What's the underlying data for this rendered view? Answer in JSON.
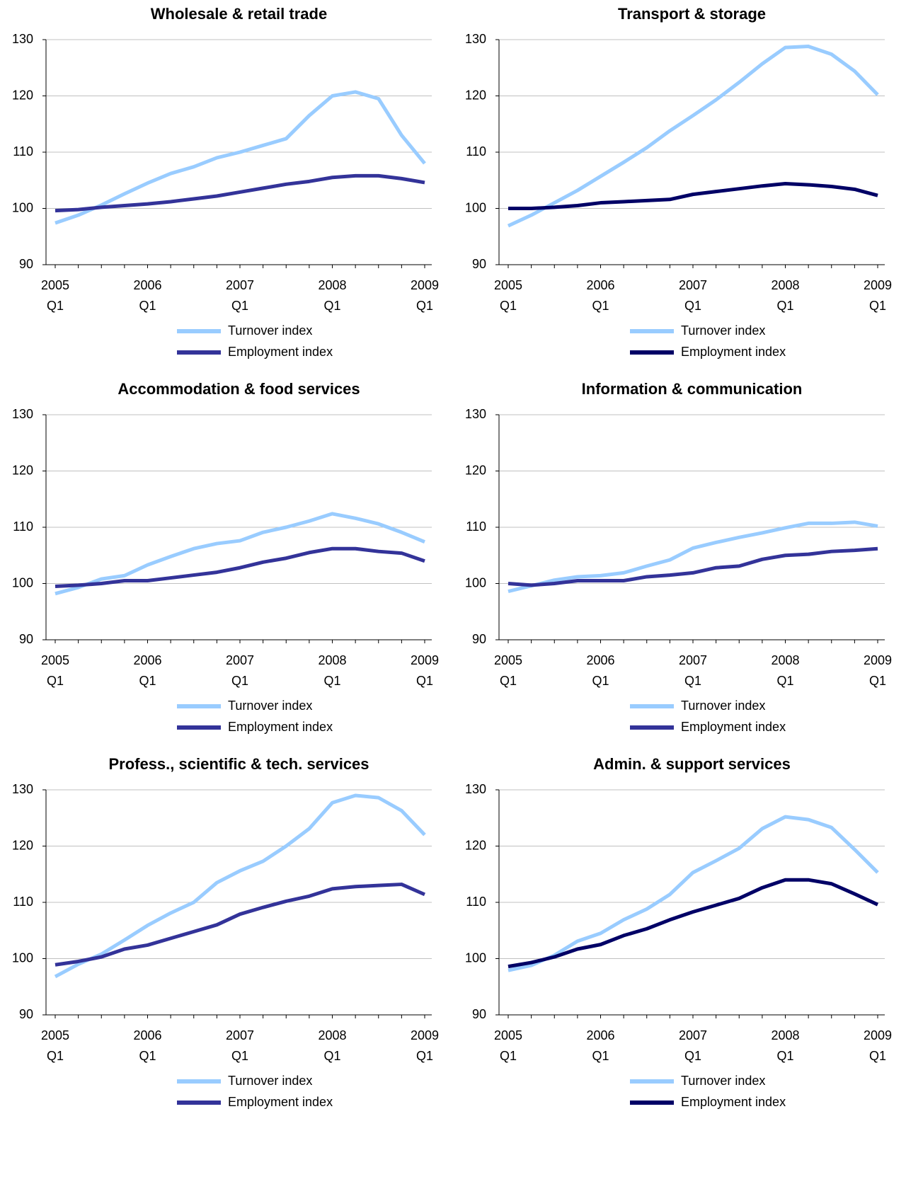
{
  "chart_data": [
    {
      "type": "line",
      "title": "Wholesale & retail trade",
      "categories": [
        "2005 Q1",
        null,
        null,
        null,
        "2006 Q1",
        null,
        null,
        null,
        "2007 Q1",
        null,
        null,
        null,
        "2008 Q1",
        null,
        null,
        null,
        "2009 Q1"
      ],
      "series": [
        {
          "name": "Turnover index",
          "color": "#99ccff",
          "values": [
            97.4,
            98.8,
            100.6,
            102.6,
            104.5,
            106.2,
            107.4,
            109.0,
            110.0,
            111.2,
            112.4,
            116.5,
            120.0,
            120.7,
            119.5,
            113.0,
            108.0
          ]
        },
        {
          "name": "Employment index",
          "color": "#333399",
          "values": [
            99.6,
            99.8,
            100.2,
            100.5,
            100.8,
            101.2,
            101.7,
            102.2,
            102.9,
            103.6,
            104.3,
            104.8,
            105.5,
            105.8,
            105.8,
            105.3,
            104.6
          ]
        }
      ],
      "ylim": [
        90,
        130
      ],
      "yticks": [
        90,
        100,
        110,
        120,
        130
      ],
      "grid": true,
      "legend": "bottom"
    },
    {
      "type": "line",
      "title": "Transport & storage",
      "categories": [
        "2005 Q1",
        null,
        null,
        null,
        "2006 Q1",
        null,
        null,
        null,
        "2007 Q1",
        null,
        null,
        null,
        "2008 Q1",
        null,
        null,
        null,
        "2009 Q1"
      ],
      "series": [
        {
          "name": "Turnover index",
          "color": "#99ccff",
          "values": [
            96.9,
            98.8,
            101.0,
            103.2,
            105.7,
            108.2,
            110.8,
            113.8,
            116.5,
            119.3,
            122.4,
            125.7,
            128.6,
            128.8,
            127.4,
            124.4,
            120.2
          ]
        },
        {
          "name": "Employment index",
          "color": "#000066",
          "values": [
            100.0,
            100.0,
            100.2,
            100.5,
            101.0,
            101.2,
            101.4,
            101.6,
            102.5,
            103.0,
            103.5,
            104.0,
            104.4,
            104.2,
            103.9,
            103.4,
            102.3
          ]
        }
      ],
      "ylim": [
        90,
        130
      ],
      "yticks": [
        90,
        100,
        110,
        120,
        130
      ],
      "grid": true,
      "legend": "bottom"
    },
    {
      "type": "line",
      "title": "Accommodation & food services",
      "categories": [
        "2005 Q1",
        null,
        null,
        null,
        "2006 Q1",
        null,
        null,
        null,
        "2007 Q1",
        null,
        null,
        null,
        "2008 Q1",
        null,
        null,
        null,
        "2009 Q1"
      ],
      "series": [
        {
          "name": "Turnover index",
          "color": "#99ccff",
          "values": [
            98.2,
            99.3,
            100.8,
            101.4,
            103.3,
            104.8,
            106.2,
            107.1,
            107.6,
            109.1,
            110.0,
            111.1,
            112.4,
            111.6,
            110.6,
            109.1,
            107.4
          ]
        },
        {
          "name": "Employment index",
          "color": "#333399",
          "values": [
            99.5,
            99.7,
            100.0,
            100.5,
            100.5,
            101.0,
            101.5,
            102.0,
            102.8,
            103.8,
            104.5,
            105.5,
            106.2,
            106.2,
            105.7,
            105.4,
            104.0
          ]
        }
      ],
      "ylim": [
        90,
        130
      ],
      "yticks": [
        90,
        100,
        110,
        120,
        130
      ],
      "grid": true,
      "legend": "bottom"
    },
    {
      "type": "line",
      "title": "Information & communication",
      "categories": [
        "2005 Q1",
        null,
        null,
        null,
        "2006 Q1",
        null,
        null,
        null,
        "2007 Q1",
        null,
        null,
        null,
        "2008 Q1",
        null,
        null,
        null,
        "2009 Q1"
      ],
      "series": [
        {
          "name": "Turnover index",
          "color": "#99ccff",
          "values": [
            98.6,
            99.6,
            100.6,
            101.2,
            101.4,
            101.9,
            103.1,
            104.2,
            106.3,
            107.3,
            108.2,
            109.0,
            109.9,
            110.7,
            110.7,
            110.9,
            110.2
          ]
        },
        {
          "name": "Employment index",
          "color": "#333399",
          "values": [
            100.0,
            99.7,
            100.0,
            100.5,
            100.5,
            100.5,
            101.2,
            101.5,
            101.9,
            102.8,
            103.1,
            104.3,
            105.0,
            105.2,
            105.7,
            105.9,
            106.2
          ]
        }
      ],
      "ylim": [
        90,
        130
      ],
      "yticks": [
        90,
        100,
        110,
        120,
        130
      ],
      "grid": true,
      "legend": "bottom"
    },
    {
      "type": "line",
      "title": "Profess., scientific & tech. services",
      "categories": [
        "2005 Q1",
        null,
        null,
        null,
        "2006 Q1",
        null,
        null,
        null,
        "2007 Q1",
        null,
        null,
        null,
        "2008 Q1",
        null,
        null,
        null,
        "2009 Q1"
      ],
      "series": [
        {
          "name": "Turnover index",
          "color": "#99ccff",
          "values": [
            96.8,
            99.0,
            100.8,
            103.3,
            105.9,
            108.1,
            110.0,
            113.5,
            115.6,
            117.3,
            120.0,
            123.1,
            127.7,
            129.0,
            128.6,
            126.3,
            122.0
          ]
        },
        {
          "name": "Employment index",
          "color": "#333399",
          "values": [
            98.9,
            99.5,
            100.3,
            101.7,
            102.4,
            103.6,
            104.8,
            106.0,
            107.9,
            109.1,
            110.2,
            111.1,
            112.4,
            112.8,
            113.0,
            113.2,
            111.4
          ]
        }
      ],
      "ylim": [
        90,
        130
      ],
      "yticks": [
        90,
        100,
        110,
        120,
        130
      ],
      "grid": true,
      "legend": "bottom"
    },
    {
      "type": "line",
      "title": "Admin. & support services",
      "categories": [
        "2005 Q1",
        null,
        null,
        null,
        "2006 Q1",
        null,
        null,
        null,
        "2007 Q1",
        null,
        null,
        null,
        "2008 Q1",
        null,
        null,
        null,
        "2009 Q1"
      ],
      "series": [
        {
          "name": "Turnover index",
          "color": "#99ccff",
          "values": [
            97.9,
            98.8,
            100.6,
            103.1,
            104.5,
            106.9,
            108.8,
            111.4,
            115.3,
            117.4,
            119.6,
            123.1,
            125.2,
            124.7,
            123.3,
            119.4,
            115.3
          ]
        },
        {
          "name": "Employment index",
          "color": "#000066",
          "values": [
            98.6,
            99.3,
            100.3,
            101.7,
            102.5,
            104.1,
            105.3,
            106.9,
            108.3,
            109.5,
            110.7,
            112.6,
            114.0,
            114.0,
            113.3,
            111.5,
            109.6
          ]
        }
      ],
      "ylim": [
        90,
        130
      ],
      "yticks": [
        90,
        100,
        110,
        120,
        130
      ],
      "grid": true,
      "legend": "bottom"
    }
  ]
}
